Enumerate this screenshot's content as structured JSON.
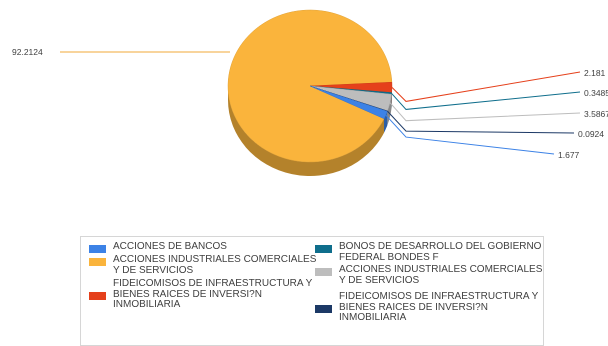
{
  "chart_data": {
    "type": "pie",
    "title": "",
    "slices": [
      {
        "label": "ACCIONES INDUSTRIALES COMERCIALES Y DE SERVICIOS",
        "value": 92.2124,
        "value_label": "92.2124",
        "color": "#FAB43C"
      },
      {
        "label": "FIDEICOMISOS DE INFRAESTRUCTURA Y BIENES RAICES DE INVERSI?N INMOBILIARIA",
        "value": 2.181,
        "value_label": "2.181",
        "color": "#E5401B"
      },
      {
        "label": "BONOS DE DESARROLLO DEL GOBIERNO FEDERAL BONDES F",
        "value": 0.3485,
        "value_label": "0.3485",
        "color": "#0F6E8C"
      },
      {
        "label": "ACCIONES INDUSTRIALES COMERCIALES Y DE SERVICIOS",
        "value": 3.5867,
        "value_label": "3.5867",
        "color": "#BDBDBD"
      },
      {
        "label": "FIDEICOMISOS DE INFRAESTRUCTURA Y BIENES RAICES DE INVERSI?N INMOBILIARIA",
        "value": 0.0924,
        "value_label": "0.0924",
        "color": "#1C3966"
      },
      {
        "label": "ACCIONES DE BANCOS",
        "value": 1.677,
        "value_label": "1.677",
        "color": "#3C82E6"
      }
    ],
    "legend": {
      "placement": "bottom",
      "items": [
        {
          "label": "ACCIONES DE BANCOS",
          "color": "#3C82E6"
        },
        {
          "label": "BONOS DE DESARROLLO DEL GOBIERNO FEDERAL BONDES F",
          "color": "#0F6E8C"
        },
        {
          "label": "ACCIONES INDUSTRIALES COMERCIALES Y DE SERVICIOS",
          "color": "#FAB43C"
        },
        {
          "label": "ACCIONES INDUSTRIALES COMERCIALES Y DE SERVICIOS",
          "color": "#BDBDBD"
        },
        {
          "label": "FIDEICOMISOS DE INFRAESTRUCTURA Y BIENES RAICES DE INVERSI?N INMOBILIARIA",
          "color": "#E5401B"
        },
        {
          "label": "FIDEICOMISOS DE INFRAESTRUCTURA Y BIENES RAICES DE INVERSI?N INMOBILIARIA",
          "color": "#1C3966"
        }
      ]
    },
    "style": "3d"
  }
}
